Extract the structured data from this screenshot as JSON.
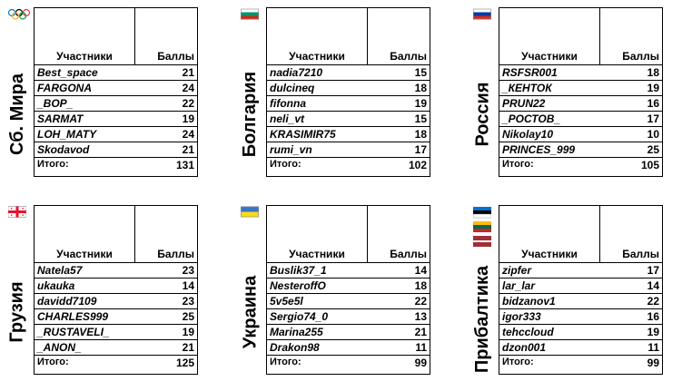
{
  "headers": {
    "participants": "Участники",
    "points": "Баллы",
    "total": "Итого:"
  },
  "teams": [
    {
      "name": "Сб. Мира",
      "flag": "olympic-rings",
      "members": [
        {
          "name": "Best_space",
          "points": "21"
        },
        {
          "name": "FARGONA",
          "points": "24"
        },
        {
          "name": "_BOP_",
          "points": "22"
        },
        {
          "name": "SARMAT",
          "points": "19"
        },
        {
          "name": "LOH_MATY",
          "points": "24"
        },
        {
          "name": "Skodavod",
          "points": "21"
        }
      ],
      "total": "131"
    },
    {
      "name": "Болгария",
      "flag": "bulgaria-flag",
      "flag_colors": [
        "#ffffff",
        "#00966e",
        "#d62612"
      ],
      "members": [
        {
          "name": "nadia7210",
          "points": "15"
        },
        {
          "name": "dulcineq",
          "points": "18"
        },
        {
          "name": "fifonna",
          "points": "19"
        },
        {
          "name": "neli_vt",
          "points": "15"
        },
        {
          "name": "KRASIMIR75",
          "points": "18"
        },
        {
          "name": "rumi_vn",
          "points": "17"
        }
      ],
      "total": "102"
    },
    {
      "name": "Россия",
      "flag": "russia-flag",
      "flag_colors": [
        "#ffffff",
        "#0039a6",
        "#d52b1e"
      ],
      "members": [
        {
          "name": "RSFSR001",
          "points": "18"
        },
        {
          "name": "_КЕНТОК",
          "points": "19"
        },
        {
          "name": "PRUN22",
          "points": "16"
        },
        {
          "name": "_РОСТОВ_",
          "points": "17"
        },
        {
          "name": "Nikolay10",
          "points": "10"
        },
        {
          "name": "PRINCES_999",
          "points": "25"
        }
      ],
      "total": "105"
    },
    {
      "name": "Грузия",
      "flag": "georgia-flag",
      "flag_colors": [
        "#ffffff",
        "#e8112d"
      ],
      "members": [
        {
          "name": "Natela57",
          "points": "23"
        },
        {
          "name": "ukauka",
          "points": "14"
        },
        {
          "name": "davidd7109",
          "points": "23"
        },
        {
          "name": "CHARLES999",
          "points": "25"
        },
        {
          "name": "_RUSTAVELI_",
          "points": "19"
        },
        {
          "name": "_ANON_",
          "points": "21"
        }
      ],
      "total": "125"
    },
    {
      "name": "Украина",
      "flag": "ukraine-flag",
      "flag_colors": [
        "#3a75c4",
        "#f9dd16"
      ],
      "members": [
        {
          "name": "Buslik37_1",
          "points": "14"
        },
        {
          "name": "NesteroffO",
          "points": "18"
        },
        {
          "name": "5v5e5l",
          "points": "22"
        },
        {
          "name": "Sergio74_0",
          "points": "13"
        },
        {
          "name": "Marina255",
          "points": "21"
        },
        {
          "name": "Drakon98",
          "points": "11"
        }
      ],
      "total": "99"
    },
    {
      "name": "Прибалтика",
      "flag": "baltic-flags",
      "flag_colors": {
        "estonia": [
          "#0072ce",
          "#000000",
          "#ffffff"
        ],
        "lithuania": [
          "#fdb913",
          "#006a44",
          "#c1272d"
        ],
        "latvia": [
          "#9e3039",
          "#ffffff",
          "#9e3039"
        ]
      },
      "members": [
        {
          "name": "zipfer",
          "points": "17"
        },
        {
          "name": "lar_lar",
          "points": "14"
        },
        {
          "name": "bidzanov1",
          "points": "22"
        },
        {
          "name": "igor333",
          "points": "16"
        },
        {
          "name": "tehccloud",
          "points": "19"
        },
        {
          "name": "dzon001",
          "points": "11"
        }
      ],
      "total": "99"
    }
  ]
}
